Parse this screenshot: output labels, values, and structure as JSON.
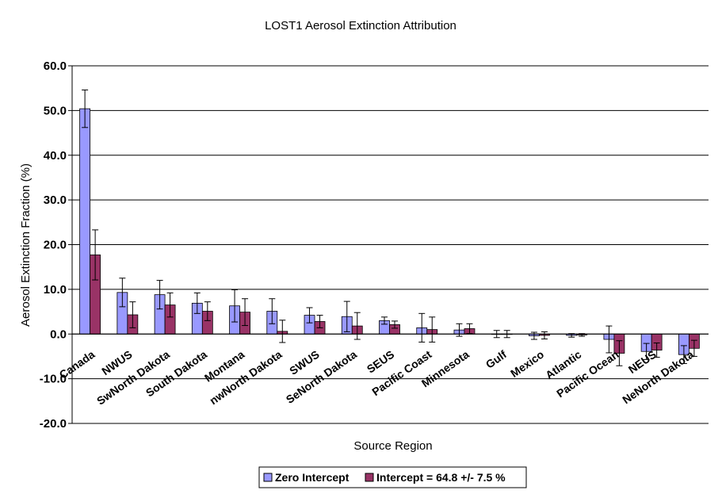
{
  "chart_data": {
    "type": "bar",
    "title": "LOST1 Aerosol Extinction Attribution",
    "xlabel": "Source Region",
    "ylabel": "Aerosol Extinction Fraction (%)",
    "ylim": [
      -20,
      60
    ],
    "ytick_step": 10,
    "ytick_labels": [
      "-20.0",
      "-10.0",
      "0.0",
      "10.0",
      "20.0",
      "30.0",
      "40.0",
      "50.0",
      "60.0"
    ],
    "grid": true,
    "legend_position": "bottom",
    "categories": [
      "Canada",
      "NWUS",
      "SwNorth Dakota",
      "South Dakota",
      "Montana",
      "nwNorth Dakota",
      "SWUS",
      "SeNorth Dakota",
      "SEUS",
      "Pacific Coast",
      "Minnesota",
      "Gulf",
      "Mexico",
      "Atlantic",
      "Pacific Ocean",
      "NEUS",
      "NeNorth Dakota"
    ],
    "series": [
      {
        "name": "Zero Intercept",
        "color": "#9999ff",
        "values": [
          50.4,
          9.3,
          8.8,
          6.9,
          6.3,
          5.1,
          4.2,
          3.9,
          3.0,
          1.4,
          0.9,
          0.0,
          -0.4,
          -0.3,
          -1.2,
          -3.9,
          -4.6
        ],
        "errors": [
          4.2,
          3.2,
          3.2,
          2.3,
          3.6,
          2.8,
          1.7,
          3.4,
          0.8,
          3.2,
          1.4,
          0.8,
          0.8,
          0.4,
          3.0,
          1.8,
          2.0
        ]
      },
      {
        "name": "Intercept = 64.8 +/- 7.5 %",
        "color": "#993366",
        "values": [
          17.7,
          4.3,
          6.5,
          5.1,
          4.9,
          0.6,
          2.8,
          1.8,
          2.1,
          1.0,
          1.2,
          0.0,
          -0.3,
          -0.2,
          -4.3,
          -3.6,
          -3.2
        ],
        "errors": [
          5.6,
          2.9,
          2.7,
          2.1,
          3.0,
          2.5,
          1.4,
          3.0,
          0.8,
          2.8,
          1.1,
          0.8,
          0.8,
          0.3,
          2.8,
          1.6,
          1.8
        ]
      }
    ]
  }
}
